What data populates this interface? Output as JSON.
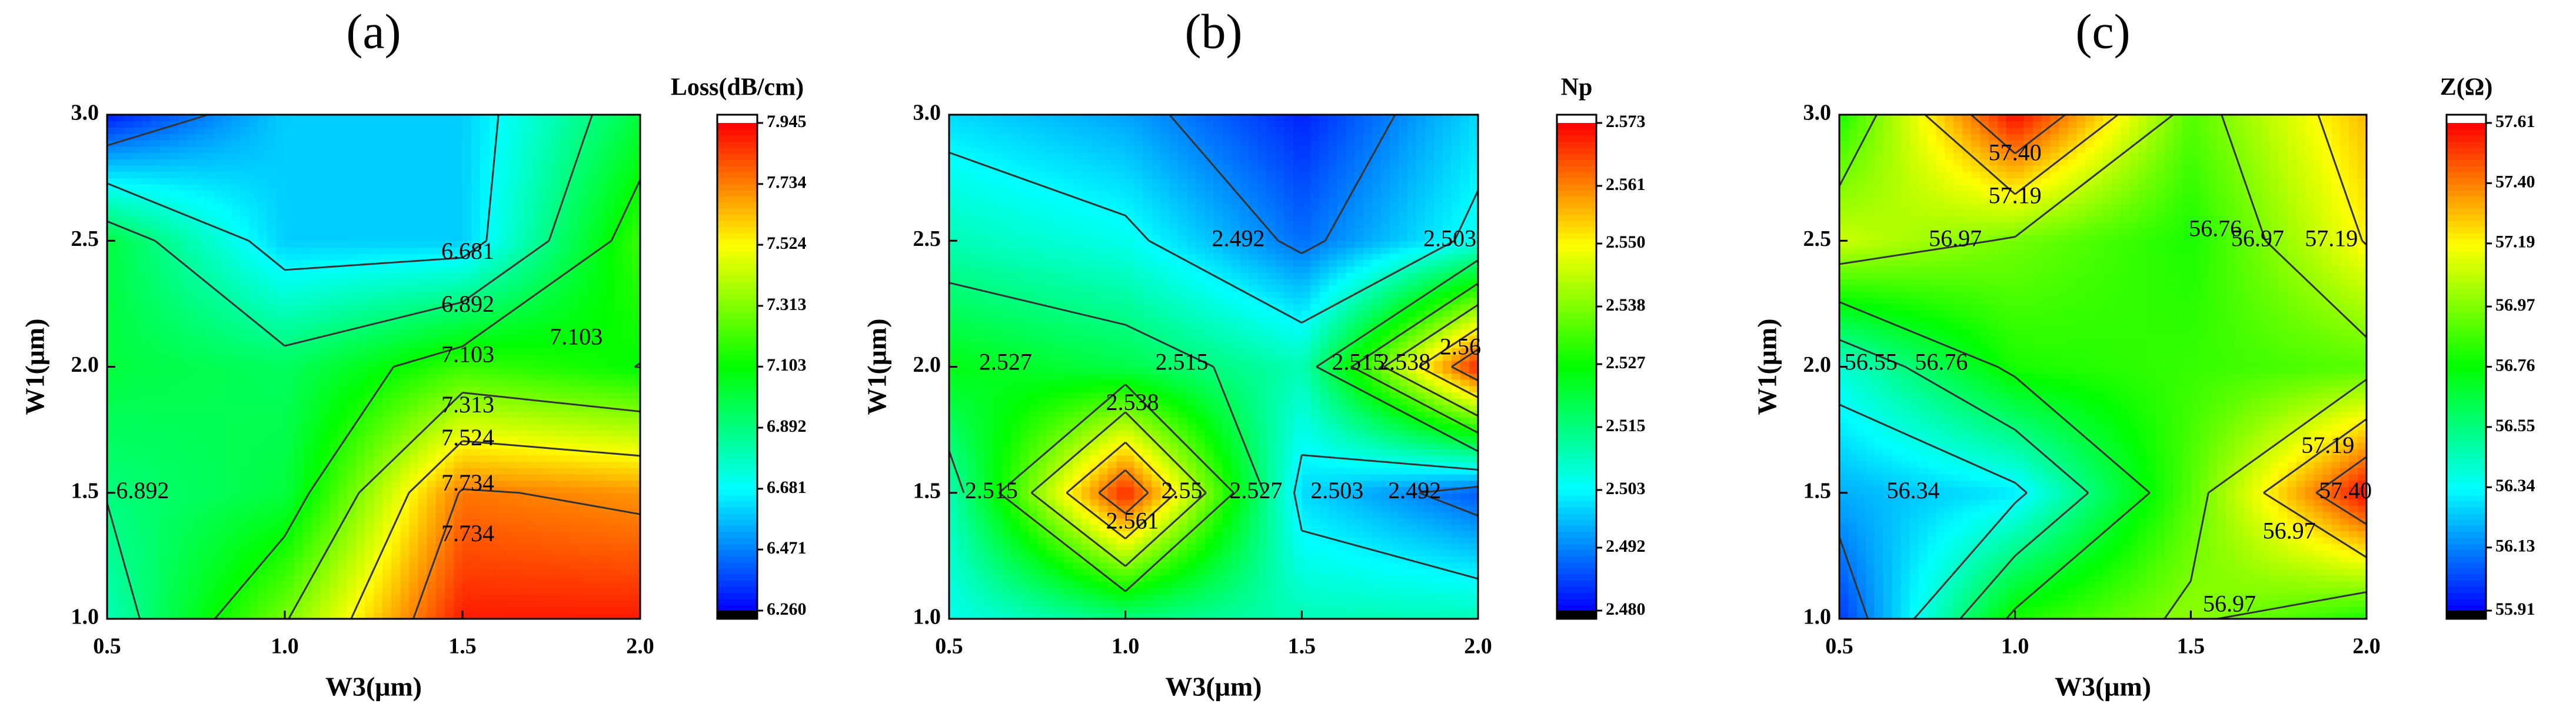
{
  "chart_data": [
    {
      "type": "contour",
      "title": "(a)",
      "xlabel": "W3(μm)",
      "ylabel": "W1(μm)",
      "x": [
        0.5,
        1.0,
        1.5,
        2.0
      ],
      "y": [
        1.0,
        1.5,
        2.0,
        2.5,
        3.0
      ],
      "z": [
        [
          6.8,
          7.3,
          7.9,
          7.9
        ],
        [
          6.9,
          7.0,
          7.75,
          7.7
        ],
        [
          7.0,
          6.95,
          7.2,
          7.1
        ],
        [
          7.0,
          6.6,
          6.6,
          7.2
        ],
        [
          6.3,
          6.6,
          6.6,
          7.0
        ]
      ],
      "xlim": [
        0.5,
        2.0
      ],
      "ylim": [
        1.0,
        3.0
      ],
      "xticks": [
        0.5,
        {
          "value": 1.0,
          "label": "1.0"
        },
        1.5,
        {
          "value": 2.0,
          "label": "2.0"
        }
      ],
      "yticks": [
        {
          "value": 1.0,
          "label": "1.0"
        },
        1.5,
        {
          "value": 2.0,
          "label": "2.0"
        },
        2.5,
        {
          "value": 3.0,
          "label": "3.0"
        }
      ],
      "colormap": [
        "#0000ff",
        "#00ffff",
        "#00ff00",
        "#ffff00",
        "#ff0000"
      ],
      "colorbar": {
        "title": "Loss(dB/cm)",
        "lim": [
          6.26,
          7.945
        ],
        "ticks": [
          {
            "value": 6.26,
            "label": "6.260"
          },
          6.471,
          6.681,
          6.892,
          7.103,
          7.313,
          7.524,
          7.734,
          7.945
        ]
      },
      "annotations": [
        {
          "text": "6.681",
          "x": 1.515,
          "y": 2.45
        },
        {
          "text": "6.892",
          "x": 1.515,
          "y": 2.24
        },
        {
          "text": "7.103",
          "x": 1.515,
          "y": 2.04
        },
        {
          "text": "7.103",
          "x": 1.82,
          "y": 2.11
        },
        {
          "text": "7.313",
          "x": 1.515,
          "y": 1.84
        },
        {
          "text": "7.524",
          "x": 1.515,
          "y": 1.71
        },
        {
          "text": "7.734",
          "x": 1.515,
          "y": 1.53
        },
        {
          "text": "7.734",
          "x": 1.515,
          "y": 1.33
        },
        {
          "text": "6.892",
          "x": 0.6,
          "y": 1.5
        }
      ]
    },
    {
      "type": "contour",
      "title": "(b)",
      "xlabel": "W3(μm)",
      "ylabel": "W1(μm)",
      "x": [
        0.5,
        1.0,
        1.5,
        2.0
      ],
      "y": [
        1.0,
        1.5,
        2.0,
        2.5,
        3.0
      ],
      "z": [
        [
          2.505,
          2.515,
          2.51,
          2.51
        ],
        [
          2.51,
          2.57,
          2.5,
          2.488
        ],
        [
          2.525,
          2.52,
          2.51,
          2.57
        ],
        [
          2.51,
          2.505,
          2.49,
          2.505
        ],
        [
          2.5,
          2.495,
          2.483,
          2.5
        ]
      ],
      "xlim": [
        0.5,
        2.0
      ],
      "ylim": [
        1.0,
        3.0
      ],
      "xticks": [
        0.5,
        {
          "value": 1.0,
          "label": "1.0"
        },
        1.5,
        {
          "value": 2.0,
          "label": "2.0"
        }
      ],
      "yticks": [
        {
          "value": 1.0,
          "label": "1.0"
        },
        1.5,
        {
          "value": 2.0,
          "label": "2.0"
        },
        2.5,
        {
          "value": 3.0,
          "label": "3.0"
        }
      ],
      "colormap": [
        "#0000ff",
        "#00ffff",
        "#00ff00",
        "#ffff00",
        "#ff0000"
      ],
      "colorbar": {
        "title": "Np",
        "lim": [
          2.48,
          2.573
        ],
        "ticks": [
          {
            "value": 2.48,
            "label": "2.480"
          },
          2.492,
          2.503,
          2.515,
          2.527,
          2.538,
          {
            "value": 2.55,
            "label": "2.550"
          },
          2.561,
          2.573
        ]
      },
      "annotations": [
        {
          "text": "2.492",
          "x": 1.32,
          "y": 2.5
        },
        {
          "text": "2.503",
          "x": 1.92,
          "y": 2.5
        },
        {
          "text": "2.527",
          "x": 0.66,
          "y": 2.01
        },
        {
          "text": "2.515",
          "x": 1.16,
          "y": 2.01
        },
        {
          "text": "2.515",
          "x": 1.66,
          "y": 2.01
        },
        {
          "text": "2.538",
          "x": 1.79,
          "y": 2.01
        },
        {
          "text": "2.56",
          "x": 1.95,
          "y": 2.07
        },
        {
          "text": "2.538",
          "x": 1.02,
          "y": 1.85
        },
        {
          "text": "2.515",
          "x": 0.62,
          "y": 1.5
        },
        {
          "text": "2.55",
          "x": 1.16,
          "y": 1.5
        },
        {
          "text": "2.527",
          "x": 1.37,
          "y": 1.5
        },
        {
          "text": "2.561",
          "x": 1.02,
          "y": 1.38
        },
        {
          "text": "2.503",
          "x": 1.6,
          "y": 1.5
        },
        {
          "text": "2.492",
          "x": 1.82,
          "y": 1.5
        }
      ]
    },
    {
      "type": "contour",
      "title": "(c)",
      "xlabel": "W3(μm)",
      "ylabel": "W1(μm)",
      "x": [
        0.5,
        1.0,
        1.5,
        2.0
      ],
      "y": [
        1.0,
        1.5,
        2.0,
        2.5,
        3.0
      ],
      "z": [
        [
          56.0,
          56.8,
          57.0,
          56.8
        ],
        [
          56.2,
          56.3,
          56.9,
          57.6
        ],
        [
          56.4,
          56.8,
          56.85,
          56.9
        ],
        [
          57.1,
          56.95,
          56.8,
          57.2
        ],
        [
          56.8,
          57.6,
          56.9,
          57.3
        ]
      ],
      "xlim": [
        0.5,
        2.0
      ],
      "ylim": [
        1.0,
        3.0
      ],
      "xticks": [
        0.5,
        {
          "value": 1.0,
          "label": "1.0"
        },
        1.5,
        {
          "value": 2.0,
          "label": "2.0"
        }
      ],
      "yticks": [
        {
          "value": 1.0,
          "label": "1.0"
        },
        1.5,
        {
          "value": 2.0,
          "label": "2.0"
        },
        2.5,
        {
          "value": 3.0,
          "label": "3.0"
        }
      ],
      "colormap": [
        "#0000ff",
        "#00ffff",
        "#00ff00",
        "#ffff00",
        "#ff0000"
      ],
      "colorbar": {
        "title": "Z(Ω)",
        "lim": [
          55.91,
          57.61
        ],
        "ticks": [
          55.91,
          56.13,
          56.34,
          56.55,
          56.76,
          56.97,
          57.19,
          {
            "value": 57.4,
            "label": "57.40"
          },
          57.61
        ]
      },
      "annotations": [
        {
          "text": "57.40",
          "x": 1.0,
          "y": 2.84
        },
        {
          "text": "57.19",
          "x": 1.0,
          "y": 2.67
        },
        {
          "text": "56.97",
          "x": 0.83,
          "y": 2.5
        },
        {
          "text": "56.76",
          "x": 1.57,
          "y": 2.54
        },
        {
          "text": "56.97",
          "x": 1.69,
          "y": 2.5
        },
        {
          "text": "57.19",
          "x": 1.9,
          "y": 2.5
        },
        {
          "text": "56.55",
          "x": 0.59,
          "y": 2.01
        },
        {
          "text": "56.76",
          "x": 0.79,
          "y": 2.01
        },
        {
          "text": "56.34",
          "x": 0.71,
          "y": 1.5
        },
        {
          "text": "57.19",
          "x": 1.89,
          "y": 1.68
        },
        {
          "text": "57.40",
          "x": 1.94,
          "y": 1.5
        },
        {
          "text": "56.97",
          "x": 1.78,
          "y": 1.34
        },
        {
          "text": "56.97",
          "x": 1.61,
          "y": 1.05
        }
      ]
    }
  ]
}
